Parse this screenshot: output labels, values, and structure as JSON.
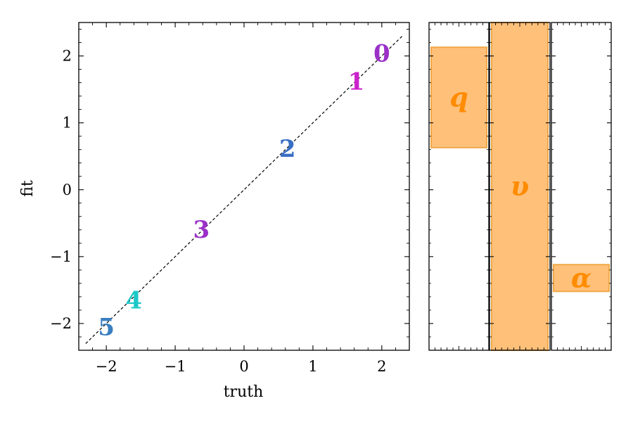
{
  "chart_data": [
    {
      "type": "scatter",
      "xlabel": "truth",
      "ylabel": "fit",
      "xlim": [
        -2.4,
        2.4
      ],
      "ylim": [
        -2.4,
        2.5
      ],
      "xticks": [
        -2,
        -1,
        0,
        1,
        2
      ],
      "yticks": [
        -2,
        -1,
        0,
        1,
        2
      ],
      "xtick_labels": [
        "−2",
        "−1",
        "0",
        "1",
        "2"
      ],
      "ytick_labels": [
        "−2",
        "−1",
        "0",
        "1",
        "2"
      ],
      "reference_line": {
        "style": "dashed",
        "color": "#000000",
        "from": [
          -2.3,
          -2.3
        ],
        "to": [
          2.3,
          2.3
        ]
      },
      "points": [
        {
          "label": "0",
          "x": 2.0,
          "y": 2.04,
          "color": "#9b30c8"
        },
        {
          "label": "1",
          "x": 1.63,
          "y": 1.62,
          "color": "#cc22cc"
        },
        {
          "label": "2",
          "x": 0.63,
          "y": 0.62,
          "color": "#3a6fc4"
        },
        {
          "label": "3",
          "x": -0.62,
          "y": -0.59,
          "color": "#9b30c8"
        },
        {
          "label": "4",
          "x": -1.6,
          "y": -1.65,
          "color": "#1cc8c8"
        },
        {
          "label": "5",
          "x": -2.0,
          "y": -2.05,
          "color": "#3a7fc0"
        }
      ],
      "grid": false
    },
    {
      "type": "bar",
      "orientation": "floating",
      "ylim": [
        -2.4,
        2.5
      ],
      "bar_color": "#ffc07a",
      "edge_color": "#f0a848",
      "label_color": "#ff8c00",
      "bars": [
        {
          "label": "q",
          "bottom": 0.63,
          "top": 2.13
        },
        {
          "label": "υ",
          "bottom": -2.5,
          "top": 2.5
        },
        {
          "label": "α",
          "bottom": -1.52,
          "top": -1.12
        }
      ],
      "grid": false
    }
  ]
}
